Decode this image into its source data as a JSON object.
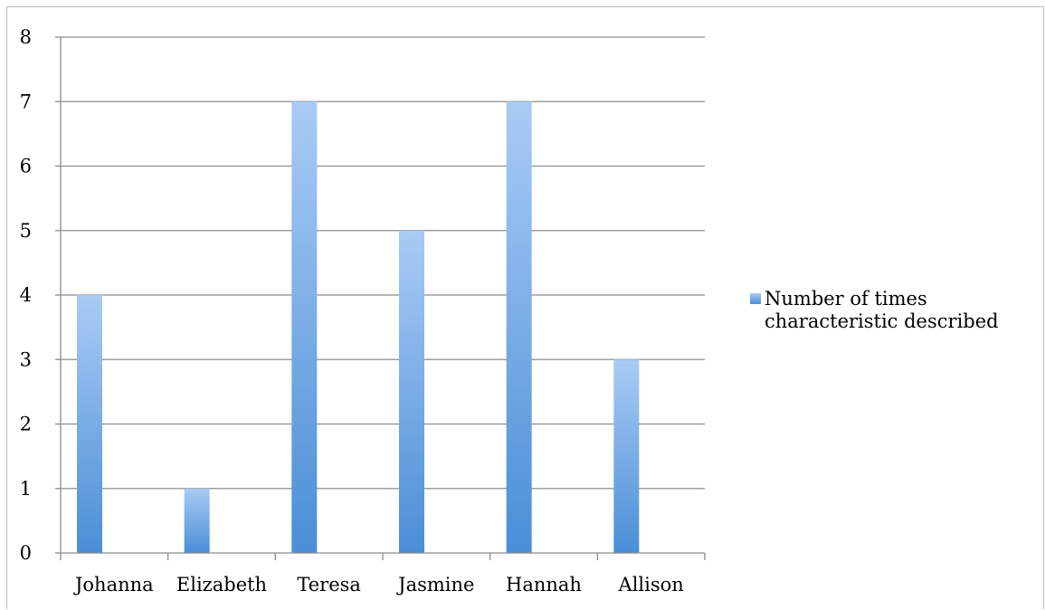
{
  "chart_data": {
    "type": "bar",
    "categories": [
      "Johanna",
      "Elizabeth",
      "Teresa",
      "Jasmine",
      "Hannah",
      "Allison"
    ],
    "series": [
      {
        "name": "Number of times characteristic described",
        "values": [
          4,
          1,
          7,
          5,
          7,
          3
        ]
      }
    ],
    "ylim": [
      0,
      8
    ],
    "yticks": [
      "0",
      "1",
      "2",
      "3",
      "4",
      "5",
      "6",
      "7",
      "8"
    ],
    "grid": true,
    "legend_position": "right",
    "colors": {
      "bar_top": "#a9cbf5",
      "bar_bottom": "#4a8ed6",
      "grid": "#8c8c8c",
      "axis": "#8c8c8c"
    }
  }
}
